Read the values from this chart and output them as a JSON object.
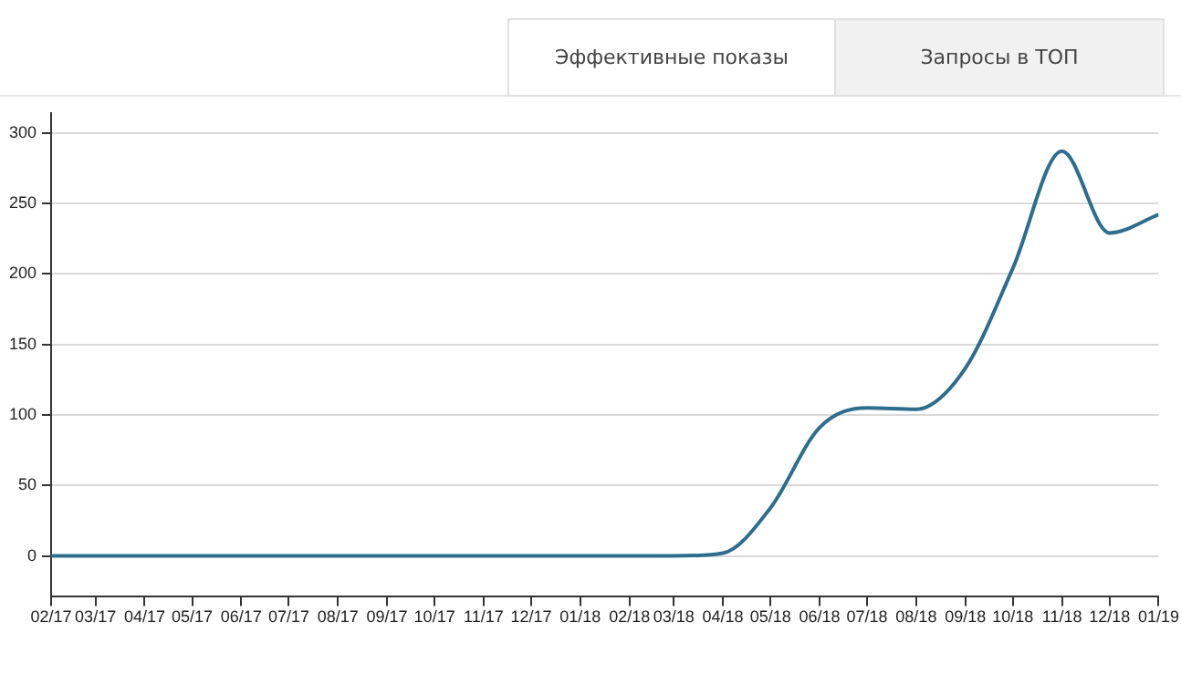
{
  "chart_data": {
    "type": "line",
    "title": "Эффективные показы",
    "annotations": [
      "Запросы в ТОП"
    ],
    "x": [
      "2017-02",
      "2017-03",
      "2017-04",
      "2017-05",
      "2017-06",
      "2017-07",
      "2017-08",
      "2017-09",
      "2017-10",
      "2017-11",
      "2017-12",
      "2018-01",
      "2018-02",
      "2018-03",
      "2018-04",
      "2018-05",
      "2018-06",
      "2018-07",
      "2018-08",
      "2018-09",
      "2018-10",
      "2018-11",
      "2018-12",
      "2019-01"
    ],
    "series": [
      {
        "color": "#2e6d8e",
        "values": [
          0,
          0,
          0,
          0,
          0,
          0,
          0,
          0,
          0,
          0,
          0,
          0,
          0,
          0,
          2,
          34,
          91,
          105,
          104,
          133,
          204,
          287,
          229,
          242
        ]
      }
    ],
    "ylim": [
      -29,
      314
    ],
    "yticks": [
      0,
      50,
      100,
      150,
      200,
      250,
      300
    ],
    "xlim": [
      "2017-02",
      "2019-01"
    ],
    "xticks": [
      {
        "value": "2017-02",
        "label": "02/17"
      },
      {
        "value": "2017-03",
        "label": "03/17"
      },
      {
        "value": "2017-04",
        "label": "04/17"
      },
      {
        "value": "2017-05",
        "label": "05/17"
      },
      {
        "value": "2017-06",
        "label": "06/17"
      },
      {
        "value": "2017-07",
        "label": "07/17"
      },
      {
        "value": "2017-08",
        "label": "08/17"
      },
      {
        "value": "2017-09",
        "label": "09/17"
      },
      {
        "value": "2017-10",
        "label": "10/17"
      },
      {
        "value": "2017-11",
        "label": "11/17"
      },
      {
        "value": "2017-12",
        "label": "12/17"
      },
      {
        "value": "2018-01",
        "label": "01/18"
      },
      {
        "value": "2018-02",
        "label": "02/18"
      },
      {
        "value": "2018-03",
        "label": "03/18"
      },
      {
        "value": "2018-04",
        "label": "04/18"
      },
      {
        "value": "2018-05",
        "label": "05/18"
      },
      {
        "value": "2018-06",
        "label": "06/18"
      },
      {
        "value": "2018-07",
        "label": "07/18"
      },
      {
        "value": "2018-08",
        "label": "08/18"
      },
      {
        "value": "2018-09",
        "label": "09/18"
      },
      {
        "value": "2018-10",
        "label": "10/18"
      },
      {
        "value": "2018-11",
        "label": "11/18"
      },
      {
        "value": "2018-12",
        "label": "12/18"
      },
      {
        "value": "2019-01",
        "label": "01/19"
      }
    ],
    "grid": "y",
    "legend": false,
    "marker": "none",
    "line_style": "solid"
  }
}
